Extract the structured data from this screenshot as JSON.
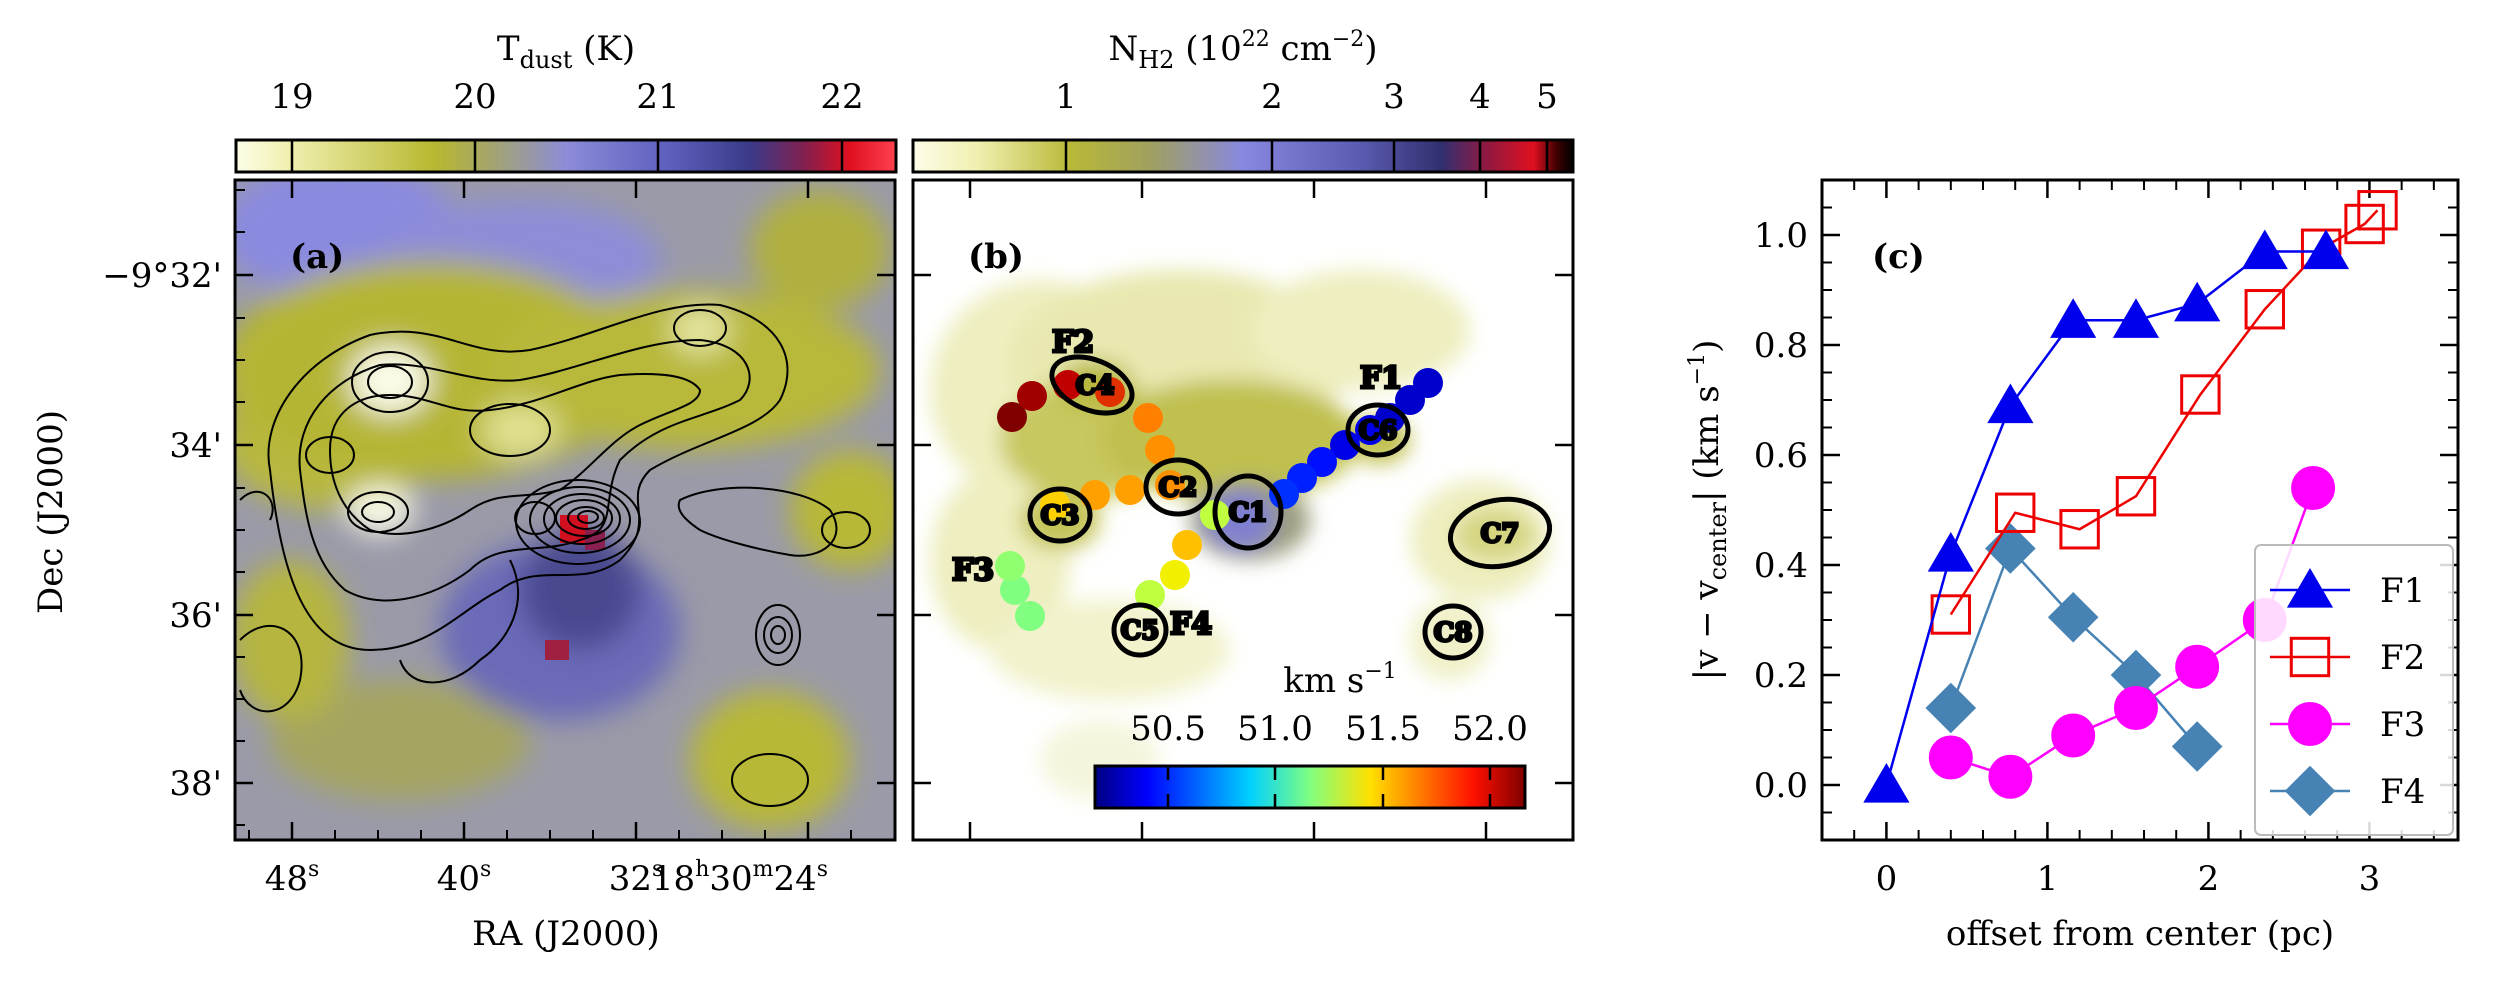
{
  "panel_a": {
    "letter": "(a)",
    "colorbar_label_main": "T",
    "colorbar_label_sub": "dust",
    "colorbar_label_unit": " (K)",
    "colorbar_ticks": [
      "19",
      "20",
      "21",
      "22"
    ],
    "xlabel": "RA (J2000)",
    "ylabel": "Dec (J2000)",
    "xticks": [
      {
        "base": "48",
        "sup": "s"
      },
      {
        "base": "40",
        "sup": "s"
      },
      {
        "base": "32",
        "sup": "s"
      },
      {
        "base": "18",
        "sup": "h",
        "base2": "30",
        "sup2": "m",
        "base3": "24",
        "sup3": "s"
      }
    ],
    "yticks": [
      "−9°32'",
      "34'",
      "36'",
      "38'"
    ]
  },
  "panel_b": {
    "letter": "(b)",
    "colorbar_label_main": "N",
    "colorbar_label_sub": "H2",
    "colorbar_label_unit": " (10",
    "colorbar_label_exp": "22",
    "colorbar_label_unit2": " cm",
    "colorbar_label_exp2": "−2",
    "colorbar_label_close": ")",
    "colorbar_ticks": [
      "1",
      "2",
      "3",
      "4",
      "5"
    ],
    "velocity_label": "km s",
    "velocity_label_exp": "−1",
    "velocity_ticks": [
      "50.5",
      "51.0",
      "51.5",
      "52.0"
    ],
    "cores": [
      {
        "name": "C1"
      },
      {
        "name": "C2"
      },
      {
        "name": "C3"
      },
      {
        "name": "C4"
      },
      {
        "name": "C5"
      },
      {
        "name": "C6"
      },
      {
        "name": "C7"
      },
      {
        "name": "C8"
      }
    ],
    "filaments": [
      "F1",
      "F2",
      "F3",
      "F4"
    ]
  },
  "chart_data": {
    "type": "line",
    "panel_letter": "(c)",
    "xlabel": "offset from center (pc)",
    "ylabel_main": "|v − v",
    "ylabel_sub": "center",
    "ylabel_unit": "| (km s",
    "ylabel_exp": "−1",
    "ylabel_close": ")",
    "xlim": [
      -0.4,
      3.55
    ],
    "ylim": [
      -0.1,
      1.1
    ],
    "xticks": [
      0,
      1,
      2,
      3
    ],
    "yticks": [
      0.0,
      0.2,
      0.4,
      0.6,
      0.8,
      1.0
    ],
    "ytick_labels": [
      "0.0",
      "0.2",
      "0.4",
      "0.6",
      "0.8",
      "1.0"
    ],
    "grid": false,
    "legend_position": "lower-right",
    "series": [
      {
        "name": "F1",
        "color": "#0000ee",
        "marker": "triangle",
        "x": [
          0.0,
          0.4,
          0.77,
          1.16,
          1.55,
          1.93,
          2.35,
          2.73
        ],
        "y": [
          0.0,
          0.42,
          0.69,
          0.845,
          0.845,
          0.875,
          0.97,
          0.97
        ]
      },
      {
        "name": "F2",
        "color": "#ee0000",
        "marker": "square",
        "x": [
          0.4,
          0.8,
          1.2,
          1.55,
          1.95,
          2.35,
          2.7,
          2.97,
          3.05
        ],
        "y": [
          0.31,
          0.495,
          0.465,
          0.525,
          0.71,
          0.865,
          0.975,
          1.02,
          1.045
        ]
      },
      {
        "name": "F3",
        "color": "#ff00ff",
        "marker": "circle",
        "x": [
          0.4,
          0.77,
          1.16,
          1.55,
          1.93,
          2.35,
          2.65
        ],
        "y": [
          0.05,
          0.015,
          0.09,
          0.14,
          0.215,
          0.3,
          0.54
        ]
      },
      {
        "name": "F4",
        "color": "#4682b4",
        "marker": "diamond",
        "x": [
          0.4,
          0.77,
          1.16,
          1.55,
          1.93
        ],
        "y": [
          0.14,
          0.43,
          0.305,
          0.2,
          0.07
        ]
      }
    ]
  }
}
